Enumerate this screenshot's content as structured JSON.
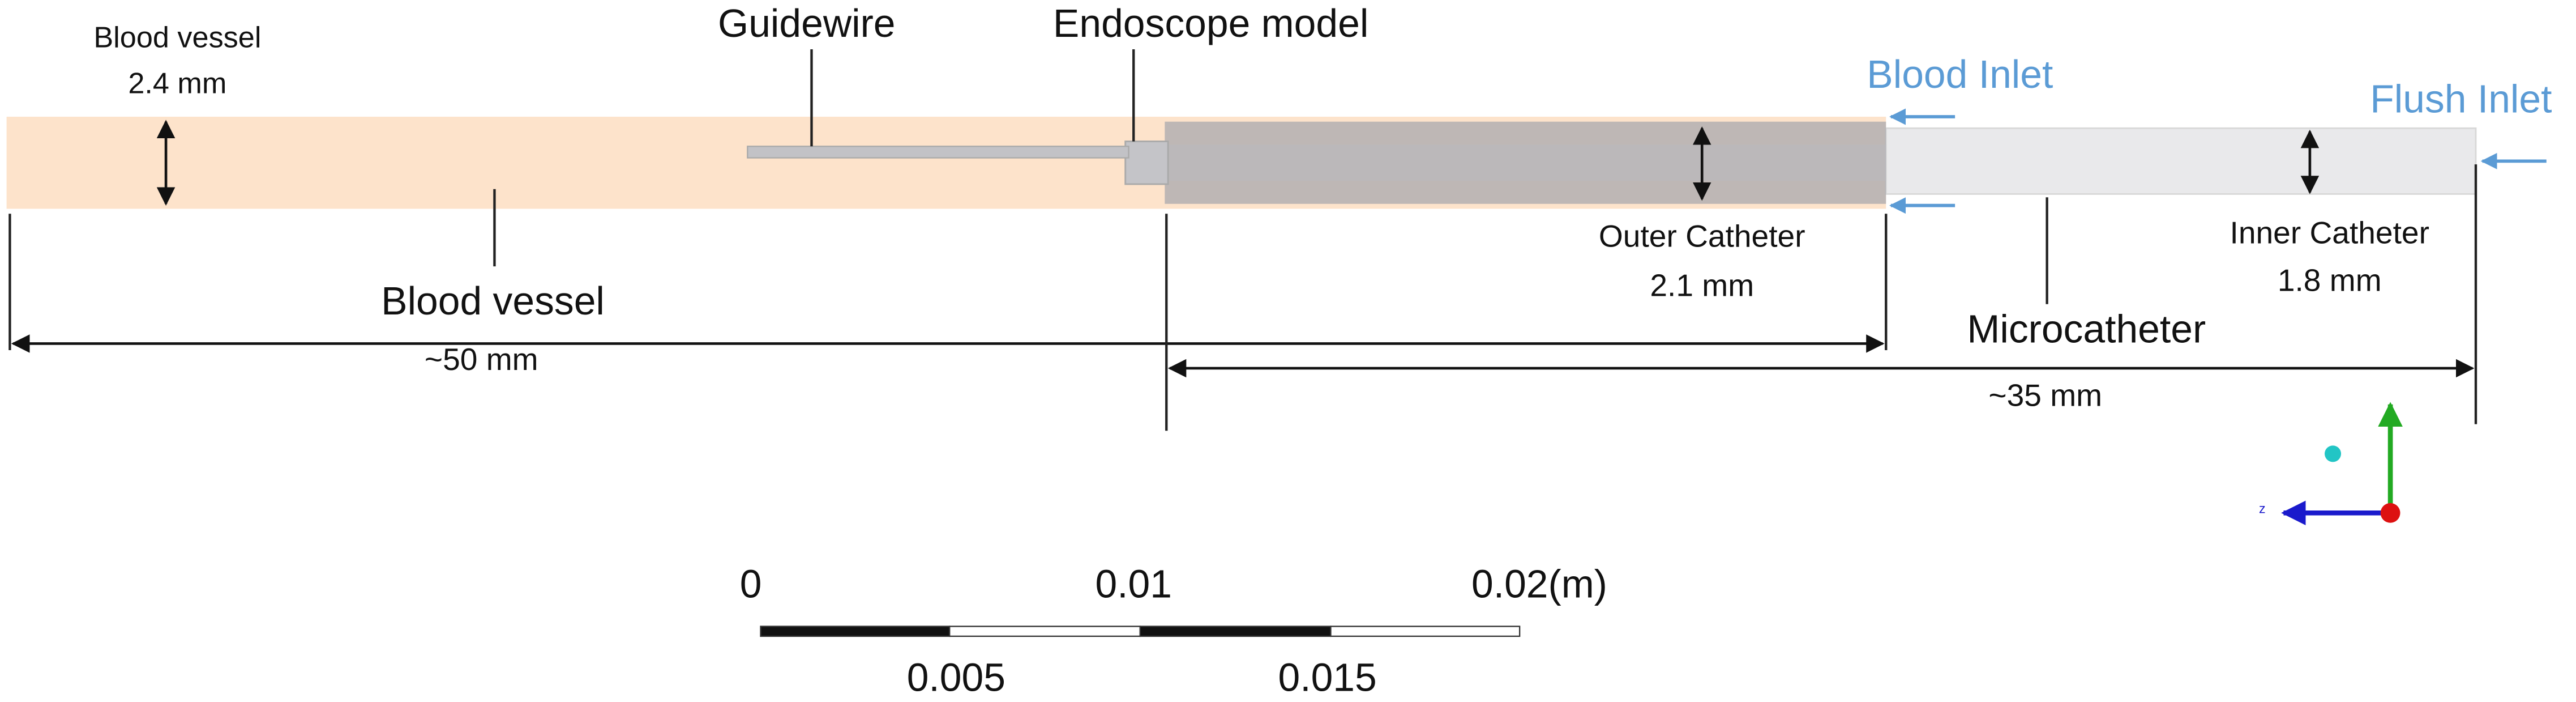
{
  "labels": {
    "blood_vessel_diameter": {
      "name": "Blood vessel",
      "size": "2.4 mm"
    },
    "guidewire": "Guidewire",
    "endoscope_model": "Endoscope model",
    "blood_inlet": "Blood Inlet",
    "flush_inlet": "Flush Inlet",
    "outer_catheter": {
      "name": "Outer Catheter",
      "size": "2.1 mm"
    },
    "inner_catheter": {
      "name": "Inner Catheter",
      "size": "1.8 mm"
    },
    "blood_vessel": "Blood vessel",
    "microcatheter": "Microcatheter",
    "length_vessel": "~50 mm",
    "length_catheter": "~35 mm",
    "axis_z": "z"
  },
  "scale_bar": {
    "top": [
      "0",
      "0.01",
      "0.02(m)"
    ],
    "bottom": [
      "0.005",
      "0.015"
    ]
  }
}
